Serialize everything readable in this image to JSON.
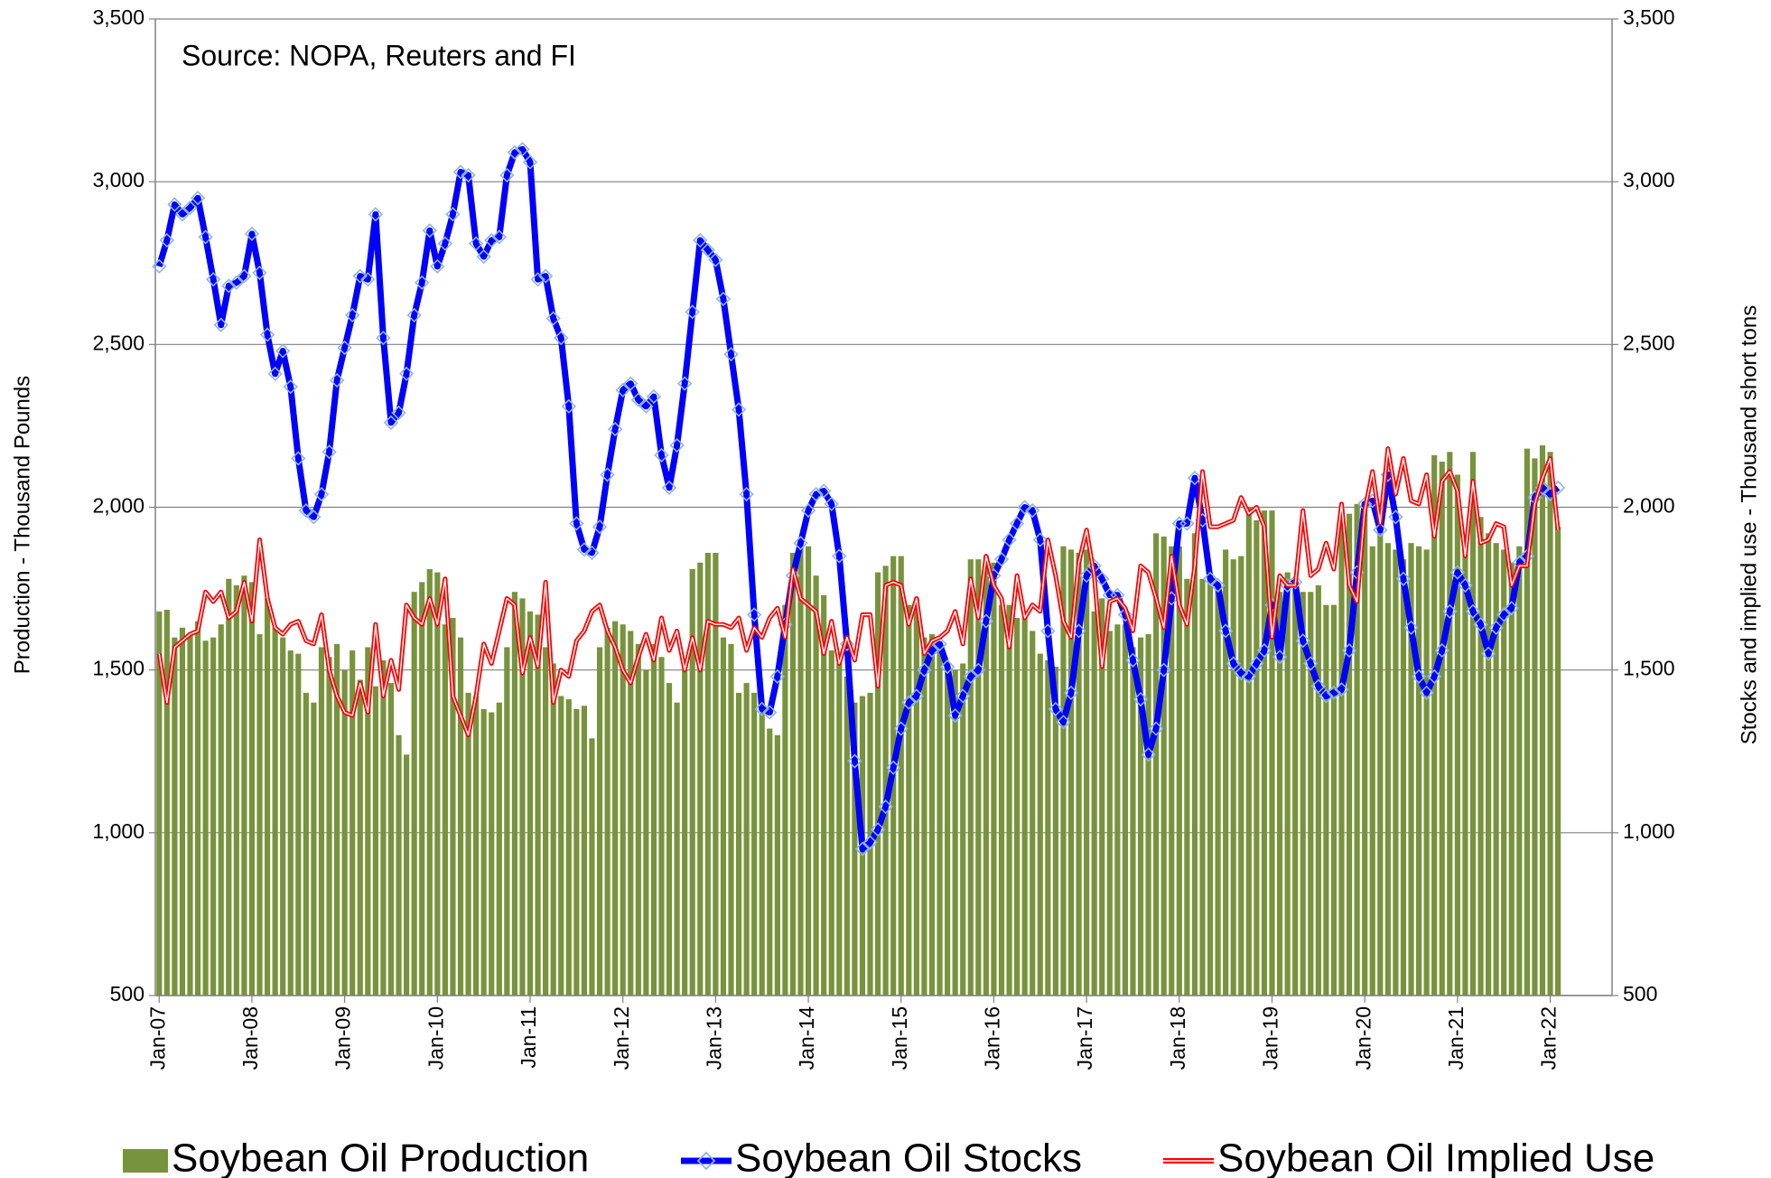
{
  "chart_data": {
    "type": "combo",
    "annotation": "Source: NOPA, Reuters and FI",
    "y_label": "Production - Thousand Pounds",
    "y2_label": "Stocks and implied use - Thousand short tons",
    "categories": [
      "Jan-07",
      null,
      null,
      null,
      null,
      null,
      null,
      null,
      null,
      null,
      null,
      null,
      "Jan-08",
      null,
      null,
      null,
      null,
      null,
      null,
      null,
      null,
      null,
      null,
      null,
      "Jan-09",
      null,
      null,
      null,
      null,
      null,
      null,
      null,
      null,
      null,
      null,
      null,
      "Jan-10",
      null,
      null,
      null,
      null,
      null,
      null,
      null,
      null,
      null,
      null,
      null,
      "Jan-11",
      null,
      null,
      null,
      null,
      null,
      null,
      null,
      null,
      null,
      null,
      null,
      "Jan-12",
      null,
      null,
      null,
      null,
      null,
      null,
      null,
      null,
      null,
      null,
      null,
      "Jan-13",
      null,
      null,
      null,
      null,
      null,
      null,
      null,
      null,
      null,
      null,
      null,
      "Jan-14",
      null,
      null,
      null,
      null,
      null,
      null,
      null,
      null,
      null,
      null,
      null,
      "Jan-15",
      null,
      null,
      null,
      null,
      null,
      null,
      null,
      null,
      null,
      null,
      null,
      "Jan-16",
      null,
      null,
      null,
      null,
      null,
      null,
      null,
      null,
      null,
      null,
      null,
      "Jan-17",
      null,
      null,
      null,
      null,
      null,
      null,
      null,
      null,
      null,
      null,
      null,
      "Jan-18",
      null,
      null,
      null,
      null,
      null,
      null,
      null,
      null,
      null,
      null,
      null,
      "Jan-19",
      null,
      null,
      null,
      null,
      null,
      null,
      null,
      null,
      null,
      null,
      null,
      "Jan-20",
      null,
      null,
      null,
      null,
      null,
      null,
      null,
      null,
      null,
      null,
      null,
      "Jan-21",
      null,
      null,
      null,
      null,
      null,
      null,
      null,
      null,
      null,
      null,
      null,
      "Jan-22",
      null
    ],
    "ylim": [
      500,
      3500
    ],
    "yticks": [
      500,
      {
        "value": 1000,
        "label": "1,000"
      },
      {
        "value": 1500,
        "label": "1,500"
      },
      {
        "value": 2000,
        "label": "2,000"
      },
      {
        "value": 2500,
        "label": "2,500"
      },
      {
        "value": 3000,
        "label": "3,000"
      },
      {
        "value": 3500,
        "label": "3,500"
      }
    ],
    "y2lim": [
      500,
      3500
    ],
    "y2ticks": [
      500,
      {
        "value": 1000,
        "label": "1,000"
      },
      {
        "value": 1500,
        "label": "1,500"
      },
      {
        "value": 2000,
        "label": "2,000"
      },
      {
        "value": 2500,
        "label": "2,500"
      },
      {
        "value": 3000,
        "label": "3,000"
      },
      {
        "value": 3500,
        "label": "3,500"
      }
    ],
    "grid": true,
    "legend": "bottom",
    "series": [
      {
        "name": "Soybean Oil Production",
        "type": "bar",
        "color": "#77933c",
        "values": [
          1680,
          1685,
          1600,
          1630,
          1610,
          1650,
          1590,
          1600,
          1640,
          1780,
          1760,
          1790,
          1770,
          1610,
          1720,
          1630,
          1600,
          1560,
          1550,
          1430,
          1400,
          1570,
          1540,
          1580,
          1500,
          1560,
          1470,
          1570,
          1450,
          1530,
          1460,
          1300,
          1240,
          1740,
          1770,
          1810,
          1800,
          1640,
          1660,
          1600,
          1430,
          1420,
          1380,
          1370,
          1400,
          1570,
          1740,
          1720,
          1680,
          1670,
          1570,
          1520,
          1420,
          1410,
          1380,
          1390,
          1290,
          1570,
          1630,
          1650,
          1640,
          1620,
          1580,
          1500,
          1580,
          1540,
          1460,
          1400,
          1500,
          1810,
          1830,
          1860,
          1860,
          1600,
          1580,
          1430,
          1460,
          1430,
          1370,
          1320,
          1300,
          1700,
          1860,
          1900,
          1880,
          1790,
          1730,
          1560,
          1520,
          1480,
          1400,
          1420,
          1430,
          1800,
          1820,
          1850,
          1850,
          1700,
          1720,
          1600,
          1610,
          1560,
          1520,
          1500,
          1520,
          1840,
          1840,
          1850,
          1830,
          1700,
          1700,
          1660,
          1660,
          1620,
          1550,
          1530,
          1510,
          1880,
          1870,
          1860,
          1870,
          1680,
          1720,
          1620,
          1640,
          1640,
          1570,
          1600,
          1610,
          1920,
          1910,
          1880,
          1880,
          1780,
          1920,
          1780,
          1800,
          1760,
          1870,
          1840,
          1850,
          2000,
          1960,
          1990,
          1990,
          1740,
          1800,
          1750,
          1740,
          1740,
          1760,
          1700,
          1700,
          1990,
          1980,
          2010,
          2000,
          1880,
          1940,
          1890,
          1870,
          1840,
          1890,
          1880,
          1870,
          2160,
          2140,
          2170,
          2100,
          1880,
          2170,
          1970,
          1920,
          1890,
          1870,
          1830,
          1880,
          2180,
          2150,
          2190,
          2170,
          1940
        ]
      },
      {
        "name": "Soybean Oil Stocks",
        "type": "line",
        "axis": "y2",
        "color": "#0000ff",
        "values": [
          2740,
          2820,
          2930,
          2900,
          2920,
          2950,
          2830,
          2700,
          2560,
          2680,
          2690,
          2710,
          2840,
          2720,
          2530,
          2410,
          2480,
          2370,
          2150,
          1990,
          1970,
          2040,
          2170,
          2390,
          2490,
          2590,
          2710,
          2700,
          2900,
          2520,
          2260,
          2290,
          2410,
          2590,
          2690,
          2850,
          2740,
          2810,
          2900,
          3030,
          3020,
          2810,
          2770,
          2820,
          2830,
          3020,
          3090,
          3100,
          3060,
          2700,
          2710,
          2580,
          2520,
          2310,
          1950,
          1870,
          1860,
          1940,
          2100,
          2240,
          2360,
          2380,
          2330,
          2310,
          2340,
          2160,
          2060,
          2190,
          2380,
          2600,
          2820,
          2790,
          2760,
          2640,
          2470,
          2300,
          2040,
          1670,
          1380,
          1370,
          1480,
          1640,
          1790,
          1890,
          1990,
          2040,
          2050,
          2010,
          1850,
          1580,
          1220,
          950,
          970,
          1010,
          1080,
          1200,
          1320,
          1400,
          1420,
          1500,
          1560,
          1580,
          1510,
          1360,
          1420,
          1480,
          1500,
          1650,
          1790,
          1840,
          1900,
          1950,
          2000,
          1990,
          1900,
          1620,
          1380,
          1340,
          1430,
          1620,
          1790,
          1820,
          1780,
          1730,
          1730,
          1670,
          1530,
          1410,
          1240,
          1320,
          1500,
          1720,
          1950,
          1950,
          2090,
          1960,
          1780,
          1760,
          1620,
          1520,
          1490,
          1480,
          1520,
          1560,
          1700,
          1540,
          1760,
          1770,
          1590,
          1520,
          1450,
          1420,
          1430,
          1440,
          1560,
          1800,
          2010,
          2020,
          1930,
          2100,
          1970,
          1780,
          1630,
          1480,
          1430,
          1480,
          1560,
          1680,
          1800,
          1760,
          1680,
          1640,
          1550,
          1630,
          1670,
          1690,
          1830,
          1850,
          2030,
          2060,
          2040,
          2060
        ]
      },
      {
        "name": "Soybean Oil Implied Use",
        "type": "line",
        "axis": "y2",
        "color": "#ff0000",
        "values": [
          1550,
          1400,
          1570,
          1590,
          1610,
          1620,
          1740,
          1710,
          1740,
          1660,
          1680,
          1770,
          1650,
          1900,
          1720,
          1630,
          1610,
          1640,
          1650,
          1590,
          1580,
          1670,
          1500,
          1420,
          1370,
          1360,
          1460,
          1370,
          1640,
          1420,
          1530,
          1440,
          1700,
          1660,
          1640,
          1720,
          1640,
          1780,
          1420,
          1360,
          1300,
          1420,
          1580,
          1520,
          1620,
          1720,
          1700,
          1490,
          1600,
          1510,
          1770,
          1400,
          1500,
          1480,
          1590,
          1620,
          1680,
          1700,
          1620,
          1570,
          1500,
          1460,
          1540,
          1610,
          1530,
          1660,
          1560,
          1620,
          1500,
          1600,
          1500,
          1650,
          1640,
          1640,
          1630,
          1660,
          1560,
          1630,
          1600,
          1660,
          1690,
          1600,
          1810,
          1720,
          1700,
          1680,
          1550,
          1650,
          1520,
          1600,
          1530,
          1670,
          1670,
          1450,
          1760,
          1770,
          1760,
          1640,
          1720,
          1550,
          1590,
          1600,
          1620,
          1680,
          1580,
          1780,
          1660,
          1850,
          1760,
          1720,
          1570,
          1790,
          1660,
          1700,
          1680,
          1900,
          1790,
          1650,
          1600,
          1830,
          1930,
          1790,
          1510,
          1710,
          1720,
          1690,
          1620,
          1820,
          1800,
          1720,
          1630,
          1850,
          1700,
          1640,
          1820,
          2110,
          1940,
          1940,
          1950,
          1960,
          2030,
          1980,
          2000,
          1940,
          1600,
          1790,
          1760,
          1760,
          1990,
          1790,
          1810,
          1890,
          1810,
          2010,
          1760,
          1710,
          1990,
          2110,
          1950,
          2180,
          2040,
          2150,
          2020,
          2010,
          2100,
          1910,
          2080,
          2110,
          2050,
          1850,
          2080,
          1890,
          1900,
          1950,
          1940,
          1760,
          1820,
          1820,
          2010,
          2090,
          2150,
          1930
        ]
      }
    ]
  }
}
